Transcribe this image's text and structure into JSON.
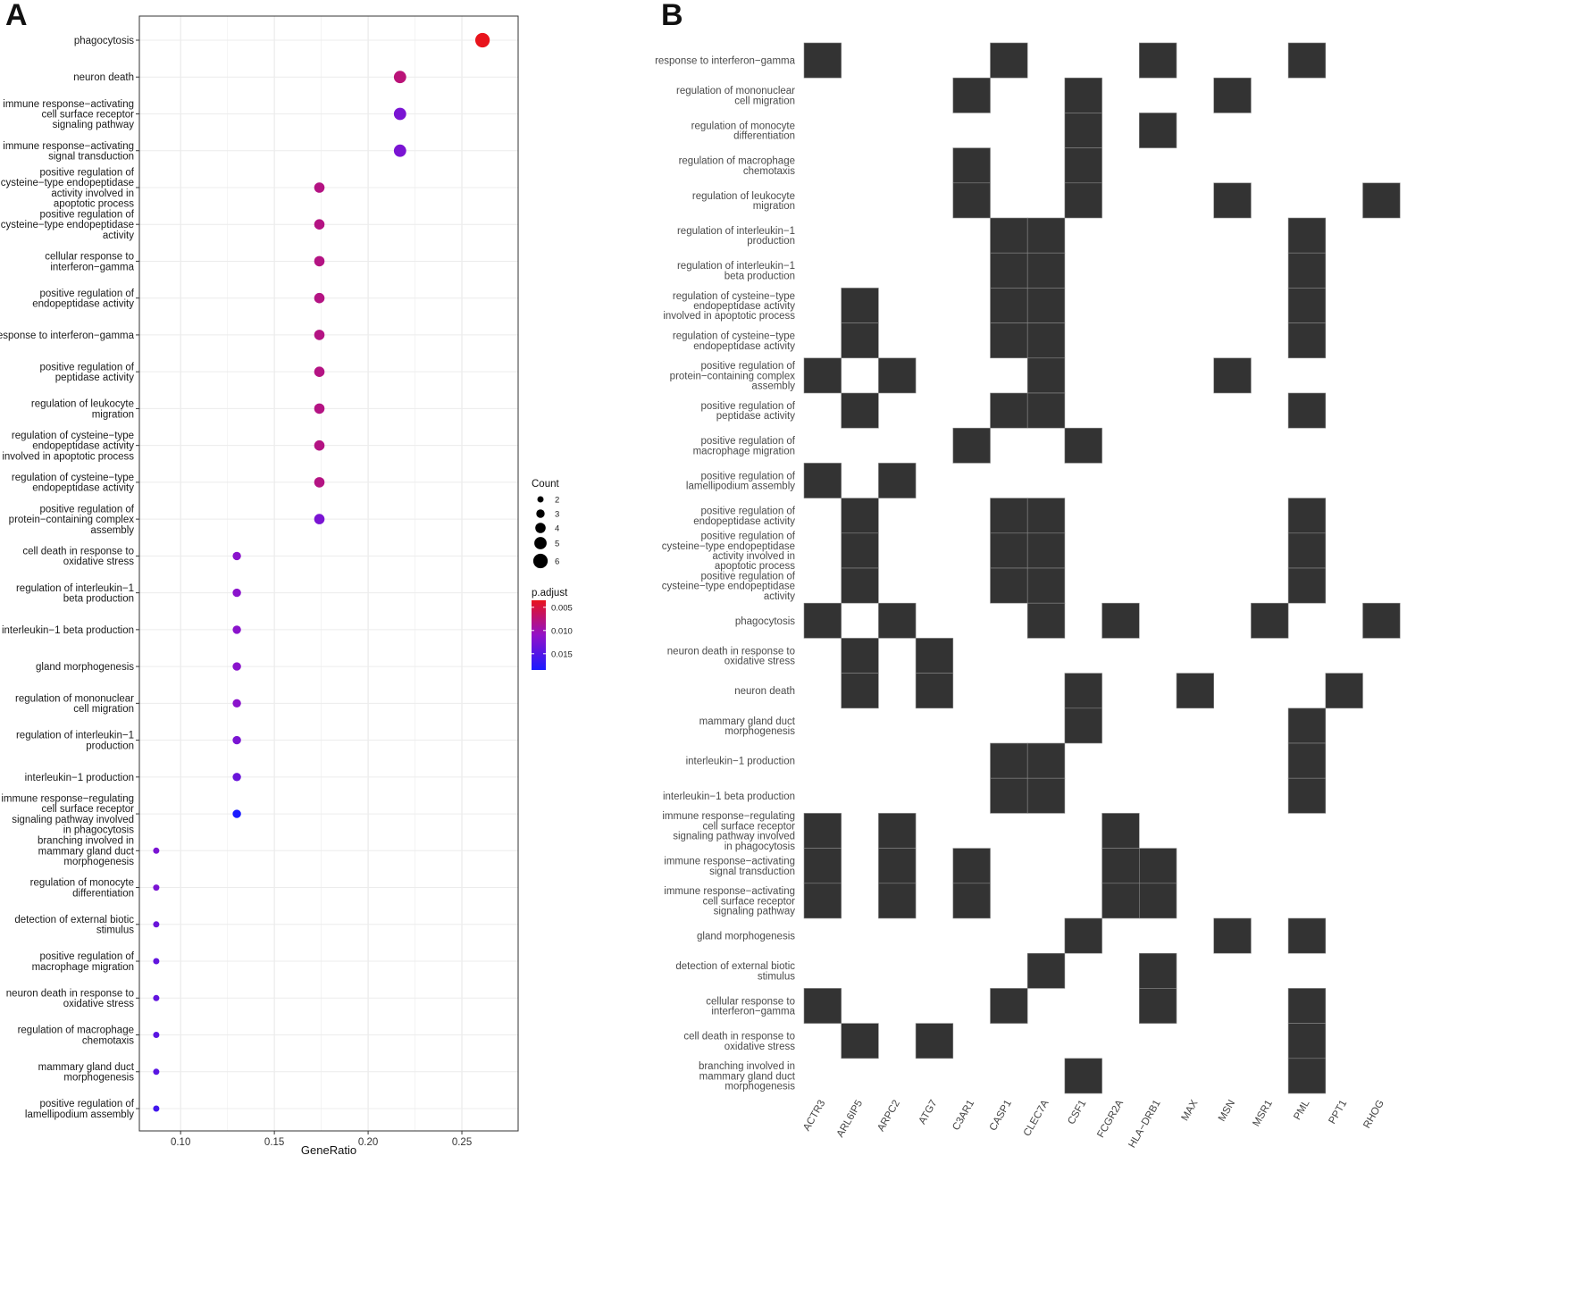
{
  "panels": {
    "a_label": "A",
    "b_label": "B"
  },
  "colors": {
    "p_low": "#e8141c",
    "p_mid": "#9212c8",
    "p_high": "#1a1aff",
    "tile": "#333333"
  },
  "chart_data": [
    {
      "type": "scatter",
      "xlabel": "GeneRatio",
      "xlim": [
        0.078,
        0.28
      ],
      "xticks": [
        0.1,
        0.15,
        0.2,
        0.25
      ],
      "xtick_labels": [
        "0.10",
        "0.15",
        "0.20",
        "0.25"
      ],
      "legend": {
        "size_title": "Count",
        "size_values": [
          2,
          3,
          4,
          5,
          6
        ],
        "size_labels": [
          "2",
          "3",
          "4",
          "5",
          "6"
        ],
        "color_title": "p.adjust",
        "color_ticks": [
          0.005,
          0.01,
          0.015
        ],
        "color_labels": [
          "0.005",
          "0.010",
          "0.015"
        ],
        "color_range": [
          0.0035,
          0.0185
        ],
        "placement": "right"
      },
      "terms": [
        {
          "label": [
            "phagocytosis"
          ],
          "generatio": 0.261,
          "count": 6,
          "p_adjust": 0.0035
        },
        {
          "label": [
            "neuron death"
          ],
          "generatio": 0.217,
          "count": 5,
          "p_adjust": 0.0075
        },
        {
          "label": [
            "immune response−activating",
            "cell surface receptor",
            "signaling pathway"
          ],
          "generatio": 0.217,
          "count": 5,
          "p_adjust": 0.0125
        },
        {
          "label": [
            "immune response−activating",
            "signal transduction"
          ],
          "generatio": 0.217,
          "count": 5,
          "p_adjust": 0.0125
        },
        {
          "label": [
            "positive regulation of",
            "cysteine−type endopeptidase",
            "activity involved in",
            "apoptotic process"
          ],
          "generatio": 0.174,
          "count": 4,
          "p_adjust": 0.008
        },
        {
          "label": [
            "positive regulation of",
            "cysteine−type endopeptidase",
            "activity"
          ],
          "generatio": 0.174,
          "count": 4,
          "p_adjust": 0.008
        },
        {
          "label": [
            "cellular response to",
            "interferon−gamma"
          ],
          "generatio": 0.174,
          "count": 4,
          "p_adjust": 0.008
        },
        {
          "label": [
            "positive regulation of",
            "endopeptidase activity"
          ],
          "generatio": 0.174,
          "count": 4,
          "p_adjust": 0.008
        },
        {
          "label": [
            "response to interferon−gamma"
          ],
          "generatio": 0.174,
          "count": 4,
          "p_adjust": 0.008
        },
        {
          "label": [
            "positive regulation of",
            "peptidase activity"
          ],
          "generatio": 0.174,
          "count": 4,
          "p_adjust": 0.008
        },
        {
          "label": [
            "regulation of leukocyte",
            "migration"
          ],
          "generatio": 0.174,
          "count": 4,
          "p_adjust": 0.008
        },
        {
          "label": [
            "regulation of cysteine−type",
            "endopeptidase activity",
            "involved in apoptotic process"
          ],
          "generatio": 0.174,
          "count": 4,
          "p_adjust": 0.008
        },
        {
          "label": [
            "regulation of cysteine−type",
            "endopeptidase activity"
          ],
          "generatio": 0.174,
          "count": 4,
          "p_adjust": 0.008
        },
        {
          "label": [
            "positive regulation of",
            "protein−containing complex",
            "assembly"
          ],
          "generatio": 0.174,
          "count": 4,
          "p_adjust": 0.0125
        },
        {
          "label": [
            "cell death in response to",
            "oxidative stress"
          ],
          "generatio": 0.13,
          "count": 3,
          "p_adjust": 0.0115
        },
        {
          "label": [
            "regulation of interleukin−1",
            "beta production"
          ],
          "generatio": 0.13,
          "count": 3,
          "p_adjust": 0.0115
        },
        {
          "label": [
            "interleukin−1 beta production"
          ],
          "generatio": 0.13,
          "count": 3,
          "p_adjust": 0.0115
        },
        {
          "label": [
            "gland morphogenesis"
          ],
          "generatio": 0.13,
          "count": 3,
          "p_adjust": 0.0115
        },
        {
          "label": [
            "regulation of mononuclear",
            "cell migration"
          ],
          "generatio": 0.13,
          "count": 3,
          "p_adjust": 0.0115
        },
        {
          "label": [
            "regulation of interleukin−1",
            "production"
          ],
          "generatio": 0.13,
          "count": 3,
          "p_adjust": 0.0125
        },
        {
          "label": [
            "interleukin−1 production"
          ],
          "generatio": 0.13,
          "count": 3,
          "p_adjust": 0.0135
        },
        {
          "label": [
            "immune response−regulating",
            "cell surface receptor",
            "signaling pathway involved",
            "in phagocytosis"
          ],
          "generatio": 0.13,
          "count": 3,
          "p_adjust": 0.0185
        },
        {
          "label": [
            "branching involved in",
            "mammary gland duct",
            "morphogenesis"
          ],
          "generatio": 0.087,
          "count": 2,
          "p_adjust": 0.0125
        },
        {
          "label": [
            "regulation of monocyte",
            "differentiation"
          ],
          "generatio": 0.087,
          "count": 2,
          "p_adjust": 0.0125
        },
        {
          "label": [
            "detection of external biotic",
            "stimulus"
          ],
          "generatio": 0.087,
          "count": 2,
          "p_adjust": 0.0135
        },
        {
          "label": [
            "positive regulation of",
            "macrophage migration"
          ],
          "generatio": 0.087,
          "count": 2,
          "p_adjust": 0.014
        },
        {
          "label": [
            "neuron death in response to",
            "oxidative stress"
          ],
          "generatio": 0.087,
          "count": 2,
          "p_adjust": 0.014
        },
        {
          "label": [
            "regulation of macrophage",
            "chemotaxis"
          ],
          "generatio": 0.087,
          "count": 2,
          "p_adjust": 0.0145
        },
        {
          "label": [
            "mammary gland duct",
            "morphogenesis"
          ],
          "generatio": 0.087,
          "count": 2,
          "p_adjust": 0.0145
        },
        {
          "label": [
            "positive regulation of",
            "lamellipodium assembly"
          ],
          "generatio": 0.087,
          "count": 2,
          "p_adjust": 0.016
        }
      ]
    },
    {
      "type": "heatmap",
      "genes": [
        "ACTR3",
        "ARL6IP5",
        "ARPC2",
        "ATG7",
        "C3AR1",
        "CASP1",
        "CLEC7A",
        "CSF1",
        "FCGR2A",
        "HLA−DRB1",
        "MAX",
        "MSN",
        "MSR1",
        "PML",
        "PPT1",
        "RHOG"
      ],
      "rows": [
        {
          "label": [
            "response to interferon−gamma"
          ],
          "genes": [
            "ACTR3",
            "CASP1",
            "HLA−DRB1",
            "PML"
          ]
        },
        {
          "label": [
            "regulation of mononuclear",
            "cell migration"
          ],
          "genes": [
            "C3AR1",
            "CSF1",
            "MSN"
          ]
        },
        {
          "label": [
            "regulation of monocyte",
            "differentiation"
          ],
          "genes": [
            "CSF1",
            "HLA−DRB1"
          ]
        },
        {
          "label": [
            "regulation of macrophage",
            "chemotaxis"
          ],
          "genes": [
            "C3AR1",
            "CSF1"
          ]
        },
        {
          "label": [
            "regulation of leukocyte",
            "migration"
          ],
          "genes": [
            "C3AR1",
            "CSF1",
            "MSN",
            "RHOG"
          ]
        },
        {
          "label": [
            "regulation of interleukin−1",
            "production"
          ],
          "genes": [
            "CASP1",
            "CLEC7A",
            "PML"
          ]
        },
        {
          "label": [
            "regulation of interleukin−1",
            "beta production"
          ],
          "genes": [
            "CASP1",
            "CLEC7A",
            "PML"
          ]
        },
        {
          "label": [
            "regulation of cysteine−type",
            "endopeptidase activity",
            "involved in apoptotic process"
          ],
          "genes": [
            "ARL6IP5",
            "CASP1",
            "CLEC7A",
            "PML"
          ]
        },
        {
          "label": [
            "regulation of cysteine−type",
            "endopeptidase activity"
          ],
          "genes": [
            "ARL6IP5",
            "CASP1",
            "CLEC7A",
            "PML"
          ]
        },
        {
          "label": [
            "positive regulation of",
            "protein−containing complex",
            "assembly"
          ],
          "genes": [
            "ACTR3",
            "ARPC2",
            "CLEC7A",
            "MSN"
          ]
        },
        {
          "label": [
            "positive regulation of",
            "peptidase activity"
          ],
          "genes": [
            "ARL6IP5",
            "CASP1",
            "CLEC7A",
            "PML"
          ]
        },
        {
          "label": [
            "positive regulation of",
            "macrophage migration"
          ],
          "genes": [
            "C3AR1",
            "CSF1"
          ]
        },
        {
          "label": [
            "positive regulation of",
            "lamellipodium assembly"
          ],
          "genes": [
            "ACTR3",
            "ARPC2"
          ]
        },
        {
          "label": [
            "positive regulation of",
            "endopeptidase activity"
          ],
          "genes": [
            "ARL6IP5",
            "CASP1",
            "CLEC7A",
            "PML"
          ]
        },
        {
          "label": [
            "positive regulation of",
            "cysteine−type endopeptidase",
            "activity involved in",
            "apoptotic process"
          ],
          "genes": [
            "ARL6IP5",
            "CASP1",
            "CLEC7A",
            "PML"
          ]
        },
        {
          "label": [
            "positive regulation of",
            "cysteine−type endopeptidase",
            "activity"
          ],
          "genes": [
            "ARL6IP5",
            "CASP1",
            "CLEC7A",
            "PML"
          ]
        },
        {
          "label": [
            "phagocytosis"
          ],
          "genes": [
            "ACTR3",
            "ARPC2",
            "CLEC7A",
            "FCGR2A",
            "MSR1",
            "RHOG"
          ]
        },
        {
          "label": [
            "neuron death in response to",
            "oxidative stress"
          ],
          "genes": [
            "ARL6IP5",
            "ATG7"
          ]
        },
        {
          "label": [
            "neuron death"
          ],
          "genes": [
            "ARL6IP5",
            "ATG7",
            "CSF1",
            "MAX",
            "PPT1"
          ]
        },
        {
          "label": [
            "mammary gland duct",
            "morphogenesis"
          ],
          "genes": [
            "CSF1",
            "PML"
          ]
        },
        {
          "label": [
            "interleukin−1 production"
          ],
          "genes": [
            "CASP1",
            "CLEC7A",
            "PML"
          ]
        },
        {
          "label": [
            "interleukin−1 beta production"
          ],
          "genes": [
            "CASP1",
            "CLEC7A",
            "PML"
          ]
        },
        {
          "label": [
            "immune response−regulating",
            "cell surface receptor",
            "signaling pathway involved",
            "in phagocytosis"
          ],
          "genes": [
            "ACTR3",
            "ARPC2",
            "FCGR2A"
          ]
        },
        {
          "label": [
            "immune response−activating",
            "signal transduction"
          ],
          "genes": [
            "ACTR3",
            "ARPC2",
            "C3AR1",
            "FCGR2A",
            "HLA−DRB1"
          ]
        },
        {
          "label": [
            "immune response−activating",
            "cell surface receptor",
            "signaling pathway"
          ],
          "genes": [
            "ACTR3",
            "ARPC2",
            "C3AR1",
            "FCGR2A",
            "HLA−DRB1"
          ]
        },
        {
          "label": [
            "gland morphogenesis"
          ],
          "genes": [
            "CSF1",
            "MSN",
            "PML"
          ]
        },
        {
          "label": [
            "detection of external biotic",
            "stimulus"
          ],
          "genes": [
            "CLEC7A",
            "HLA−DRB1"
          ]
        },
        {
          "label": [
            "cellular response to",
            "interferon−gamma"
          ],
          "genes": [
            "ACTR3",
            "CASP1",
            "HLA−DRB1",
            "PML"
          ]
        },
        {
          "label": [
            "cell death in response to",
            "oxidative stress"
          ],
          "genes": [
            "ARL6IP5",
            "ATG7",
            "PML"
          ]
        },
        {
          "label": [
            "branching involved in",
            "mammary gland duct",
            "morphogenesis"
          ],
          "genes": [
            "CSF1",
            "PML"
          ]
        }
      ]
    }
  ]
}
